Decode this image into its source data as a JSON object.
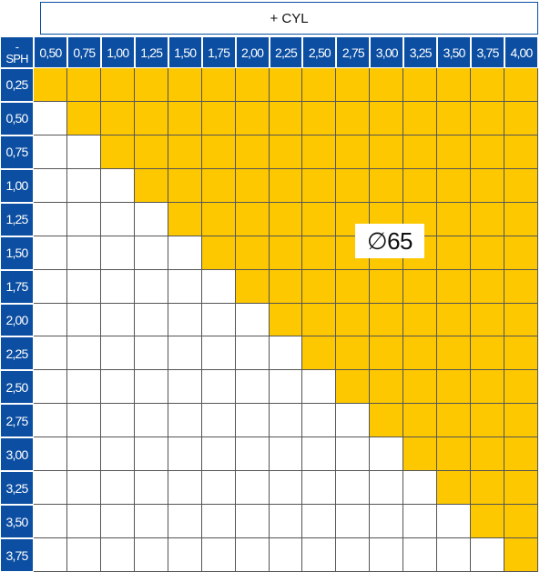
{
  "header": {
    "title": "+ CYL"
  },
  "corner": {
    "top": "-",
    "bottom": "SPH"
  },
  "columns": [
    "0,50",
    "0,75",
    "1,00",
    "1,25",
    "1,50",
    "1,75",
    "2,00",
    "2,25",
    "2,50",
    "2,75",
    "3,00",
    "3,25",
    "3,50",
    "3,75",
    "4,00"
  ],
  "rows": [
    "0,25",
    "0,50",
    "0,75",
    "1,00",
    "1,25",
    "1,50",
    "1,75",
    "2,00",
    "2,25",
    "2,50",
    "2,75",
    "3,00",
    "3,25",
    "3,50",
    "3,75"
  ],
  "label": "∅65"
}
